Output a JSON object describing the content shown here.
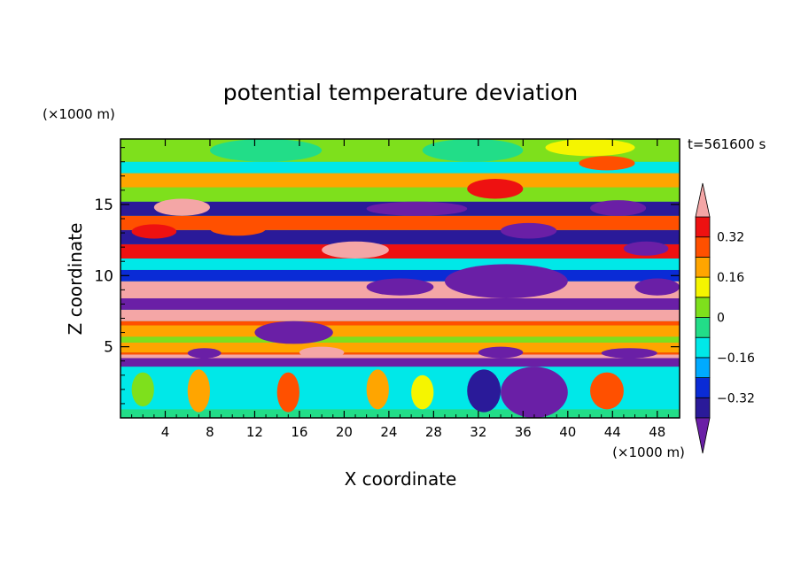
{
  "chart_data": {
    "type": "heatmap",
    "title": "potential temperature deviation",
    "xlabel": "X coordinate",
    "ylabel": "Z coordinate",
    "x_unit": "(×1000 m)",
    "y_unit": "(×1000 m)",
    "time_label": "t=561600 s",
    "xlim": [
      0,
      50
    ],
    "ylim": [
      0,
      19.6
    ],
    "x_ticks": [
      4,
      8,
      12,
      16,
      20,
      24,
      28,
      32,
      36,
      40,
      44,
      48
    ],
    "y_ticks": [
      5,
      10,
      15
    ],
    "colorbar": {
      "levels": [
        -0.4,
        -0.32,
        -0.24,
        -0.16,
        -0.08,
        0,
        0.08,
        0.16,
        0.24,
        0.32,
        0.4
      ],
      "tick_values": [
        0.32,
        0.16,
        0,
        -0.16,
        -0.32
      ],
      "tick_labels": [
        "0.32",
        "0.16",
        "0",
        "−0.16",
        "−0.32"
      ],
      "colors": [
        "#6a1fa6",
        "#2a1a99",
        "#0a2bd6",
        "#00aaff",
        "#00e8e8",
        "#22dd88",
        "#7ee01c",
        "#f5f500",
        "#ffa500",
        "#ff5000",
        "#ee1111",
        "#f4a6a6"
      ],
      "extend": "both"
    },
    "bands": [
      {
        "z0": 0.0,
        "z1": 0.6,
        "level": 5
      },
      {
        "z0": 0.6,
        "z1": 3.6,
        "level": 4
      },
      {
        "z0": 3.6,
        "z1": 4.2,
        "level": 0
      },
      {
        "z0": 4.2,
        "z1": 4.45,
        "level": 11
      },
      {
        "z0": 4.45,
        "z1": 4.6,
        "level": 9
      },
      {
        "z0": 4.6,
        "z1": 5.3,
        "level": 8
      },
      {
        "z0": 5.3,
        "z1": 5.7,
        "level": 6
      },
      {
        "z0": 5.7,
        "z1": 6.5,
        "level": 8
      },
      {
        "z0": 6.5,
        "z1": 6.8,
        "level": 9
      },
      {
        "z0": 6.8,
        "z1": 7.6,
        "level": 11
      },
      {
        "z0": 7.6,
        "z1": 8.4,
        "level": 0
      },
      {
        "z0": 8.4,
        "z1": 9.6,
        "level": 11
      },
      {
        "z0": 9.6,
        "z1": 10.4,
        "level": 2
      },
      {
        "z0": 10.4,
        "z1": 11.2,
        "level": 4
      },
      {
        "z0": 11.2,
        "z1": 12.2,
        "level": 10
      },
      {
        "z0": 12.2,
        "z1": 13.2,
        "level": 1
      },
      {
        "z0": 13.2,
        "z1": 14.2,
        "level": 9
      },
      {
        "z0": 14.2,
        "z1": 15.2,
        "level": 1
      },
      {
        "z0": 15.2,
        "z1": 16.2,
        "level": 6
      },
      {
        "z0": 16.2,
        "z1": 17.2,
        "level": 8
      },
      {
        "z0": 17.2,
        "z1": 18.0,
        "level": 4
      },
      {
        "z0": 18.0,
        "z1": 19.6,
        "level": 6
      }
    ],
    "features": [
      {
        "x": 3,
        "z": 14.2,
        "w": 5,
        "h": 1.2,
        "level": 11
      },
      {
        "x": 1,
        "z": 12.6,
        "w": 4,
        "h": 1.0,
        "level": 10
      },
      {
        "x": 8,
        "z": 12.8,
        "w": 5,
        "h": 1.0,
        "level": 9
      },
      {
        "x": 18,
        "z": 11.2,
        "w": 6,
        "h": 1.2,
        "level": 11
      },
      {
        "x": 31,
        "z": 15.4,
        "w": 5,
        "h": 1.4,
        "level": 10
      },
      {
        "x": 41,
        "z": 17.4,
        "w": 5,
        "h": 1.0,
        "level": 9
      },
      {
        "x": 42,
        "z": 14.2,
        "w": 5,
        "h": 1.1,
        "level": 0
      },
      {
        "x": 22,
        "z": 14.2,
        "w": 9,
        "h": 1.0,
        "level": 0
      },
      {
        "x": 34,
        "z": 12.6,
        "w": 5,
        "h": 1.1,
        "level": 0
      },
      {
        "x": 45,
        "z": 11.4,
        "w": 4,
        "h": 1.0,
        "level": 0
      },
      {
        "x": 29,
        "z": 8.4,
        "w": 11,
        "h": 2.4,
        "level": 0
      },
      {
        "x": 22,
        "z": 8.6,
        "w": 6,
        "h": 1.2,
        "level": 0
      },
      {
        "x": 46,
        "z": 8.6,
        "w": 4,
        "h": 1.2,
        "level": 0
      },
      {
        "x": 12,
        "z": 5.2,
        "w": 7,
        "h": 1.6,
        "level": 0
      },
      {
        "x": 16,
        "z": 4.2,
        "w": 4,
        "h": 0.8,
        "level": 11
      },
      {
        "x": 6,
        "z": 4.2,
        "w": 3,
        "h": 0.7,
        "level": 0
      },
      {
        "x": 32,
        "z": 4.2,
        "w": 4,
        "h": 0.8,
        "level": 0
      },
      {
        "x": 43,
        "z": 4.2,
        "w": 5,
        "h": 0.7,
        "level": 0
      },
      {
        "x": 34,
        "z": 0.0,
        "w": 6,
        "h": 3.6,
        "level": 0
      },
      {
        "x": 31,
        "z": 0.4,
        "w": 3,
        "h": 3.0,
        "level": 1
      },
      {
        "x": 6,
        "z": 0.4,
        "w": 2,
        "h": 3.0,
        "level": 8
      },
      {
        "x": 14,
        "z": 0.4,
        "w": 2,
        "h": 2.8,
        "level": 9
      },
      {
        "x": 22,
        "z": 0.6,
        "w": 2,
        "h": 2.8,
        "level": 8
      },
      {
        "x": 42,
        "z": 0.6,
        "w": 3,
        "h": 2.6,
        "level": 9
      },
      {
        "x": 26,
        "z": 0.6,
        "w": 2,
        "h": 2.4,
        "level": 7
      },
      {
        "x": 1,
        "z": 0.8,
        "w": 2,
        "h": 2.4,
        "level": 6
      },
      {
        "x": 8,
        "z": 18.0,
        "w": 10,
        "h": 1.6,
        "level": 5
      },
      {
        "x": 27,
        "z": 18.0,
        "w": 9,
        "h": 1.6,
        "level": 5
      },
      {
        "x": 38,
        "z": 18.4,
        "w": 8,
        "h": 1.2,
        "level": 7
      }
    ]
  }
}
